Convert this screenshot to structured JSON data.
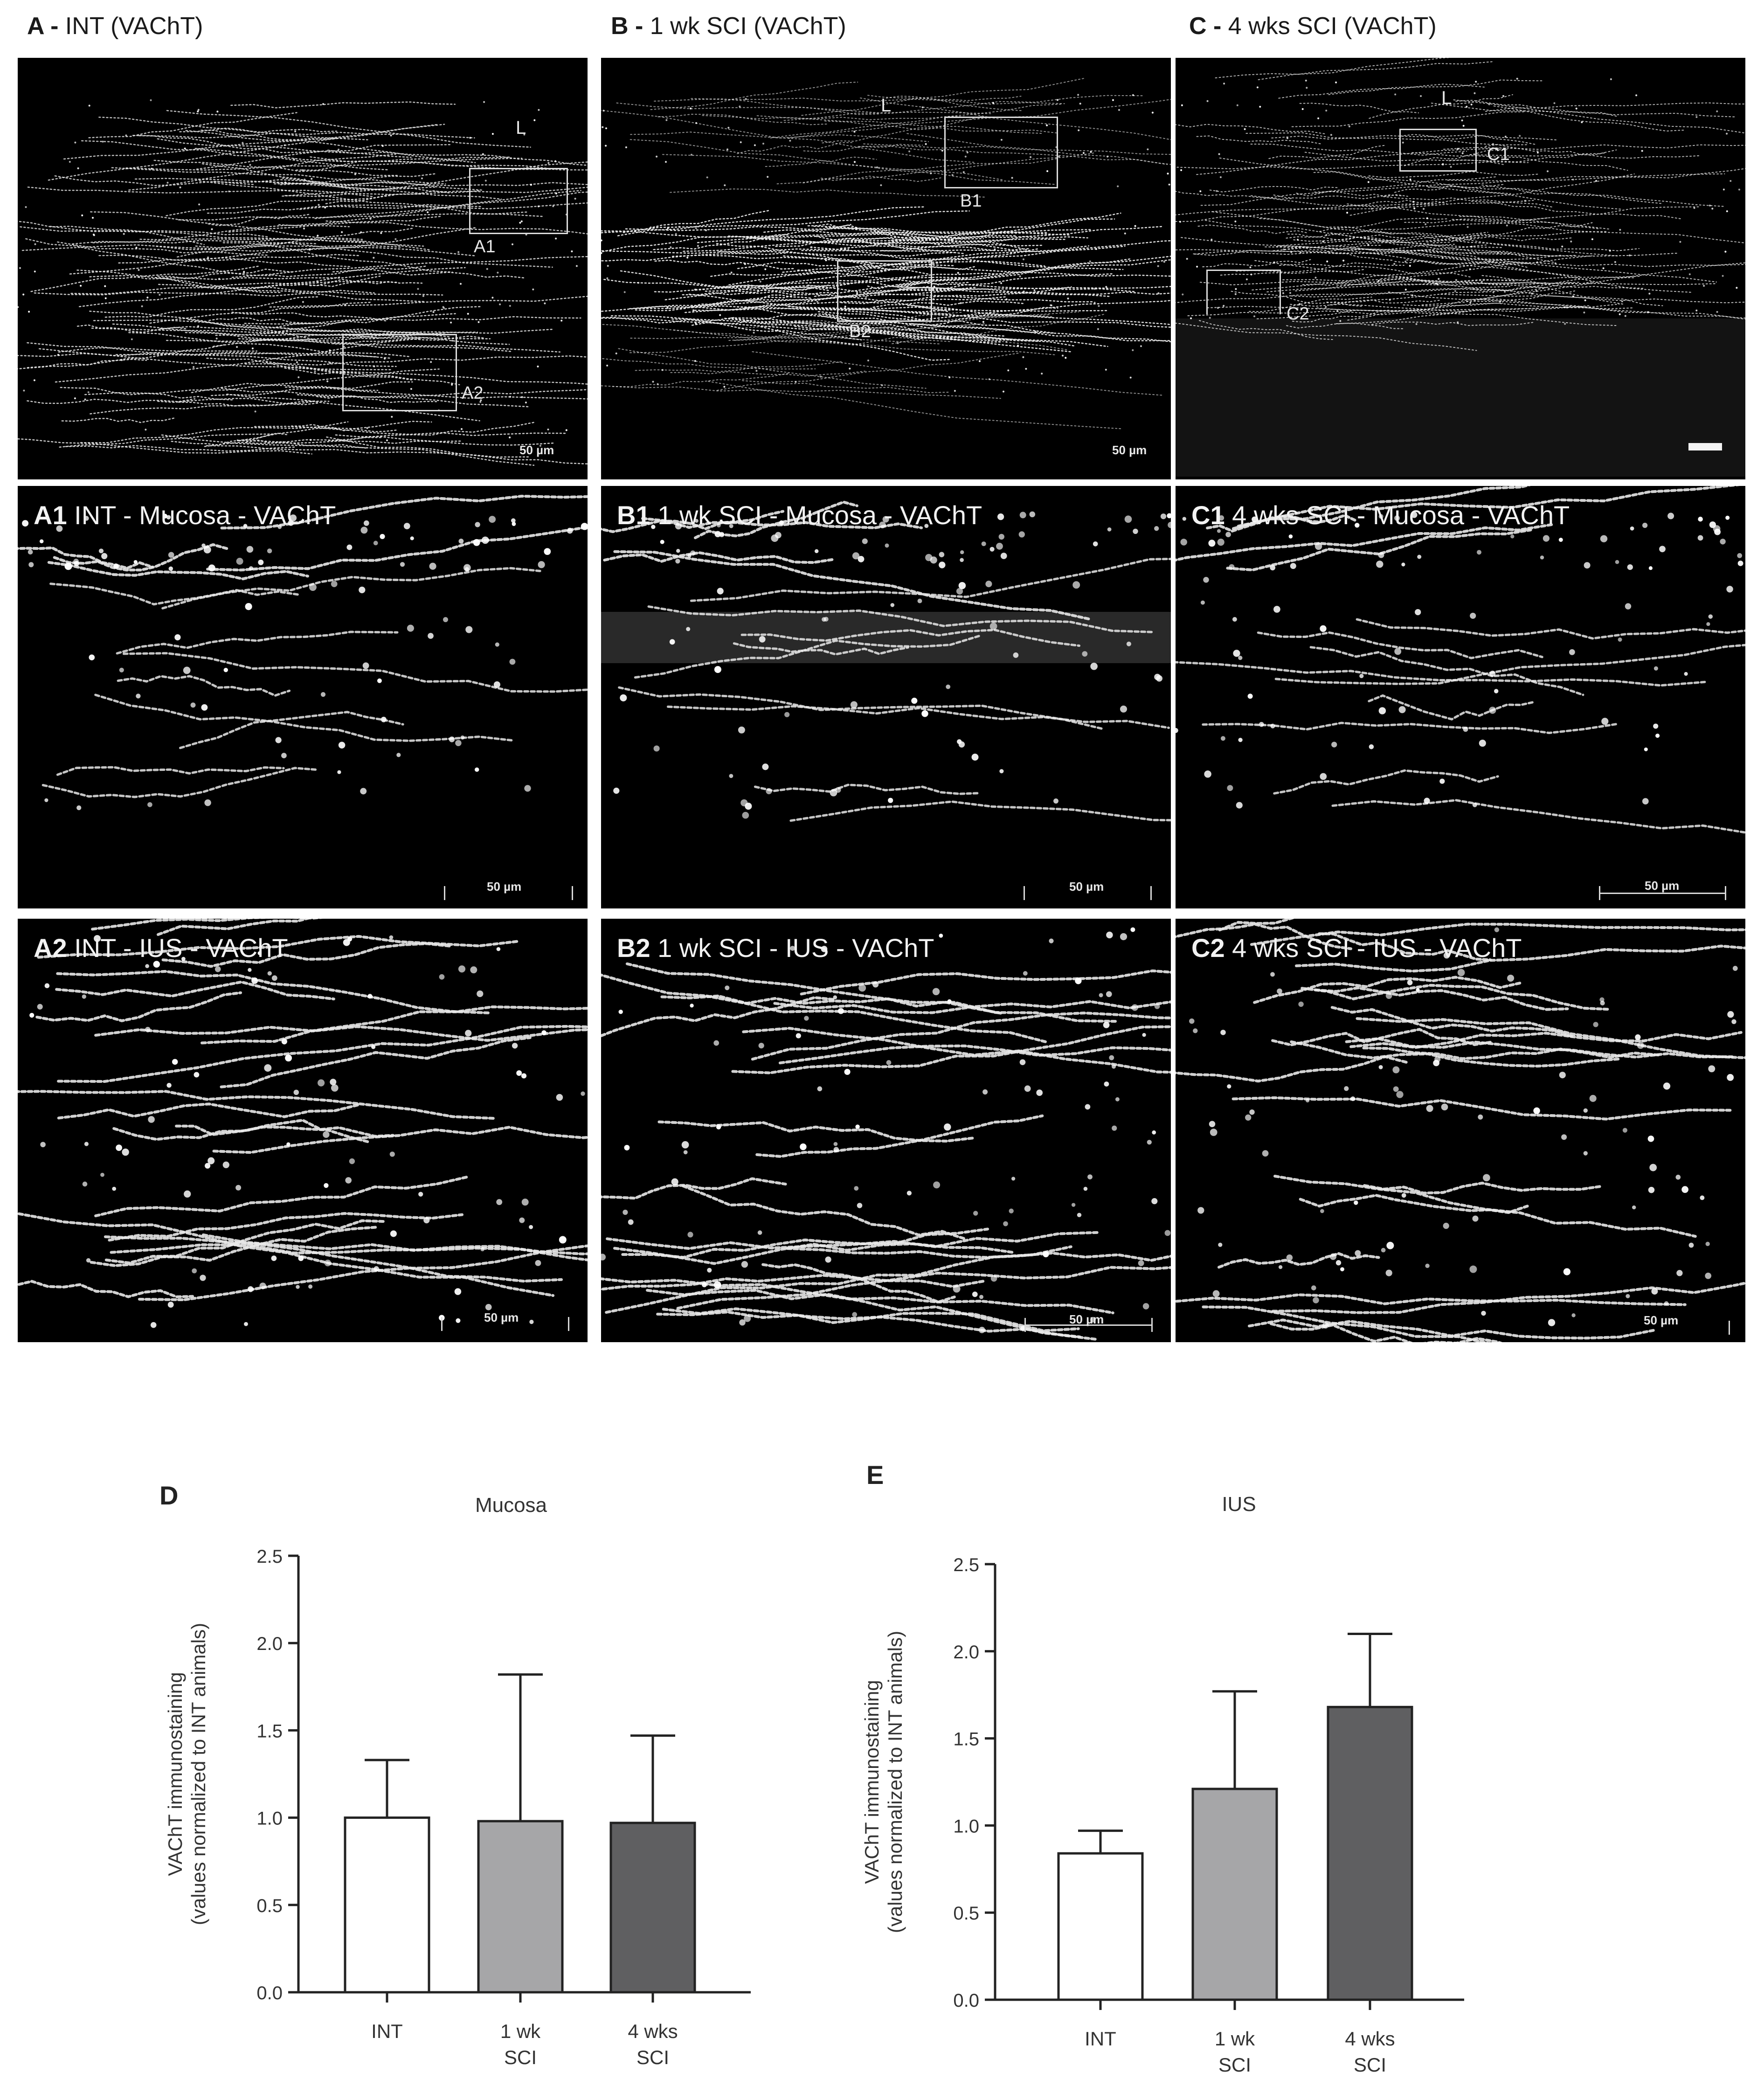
{
  "panels": {
    "A": {
      "letter": "A -",
      "title": "INT (VAChT)",
      "lumen": "L",
      "roi1": "A1",
      "roi2": "A2",
      "scale": "50 µm"
    },
    "B": {
      "letter": "B -",
      "title": "1 wk SCI (VAChT)",
      "lumen": "L",
      "roi1": "B1",
      "roi2": "B2",
      "scale": "50 µm"
    },
    "C": {
      "letter": "C -",
      "title": "4 wks SCI (VAChT)",
      "lumen": "L",
      "roi1": "C1",
      "roi2": "C2"
    },
    "A1": {
      "letter": "A1",
      "title": "INT - Mucosa - VAChT",
      "scale": "50 µm"
    },
    "B1": {
      "letter": "B1",
      "title": "1 wk SCI - Mucosa - VAChT",
      "scale": "50 µm"
    },
    "C1": {
      "letter": "C1",
      "title": "4 wks SCI - Mucosa - VAChT",
      "scale": "50 µm"
    },
    "A2": {
      "letter": "A2",
      "title": "INT - IUS - VAChT",
      "scale": "50 µm"
    },
    "B2": {
      "letter": "B2",
      "title": "1 wk SCI - IUS - VAChT",
      "scale": "50 µm"
    },
    "C2": {
      "letter": "C2",
      "title": "4 wks SCI - IUS - VAChT",
      "scale": "50 µm"
    }
  },
  "chart_data": [
    {
      "letter": "D",
      "type": "bar",
      "title": "Mucosa",
      "ylabel_line1": "VAChT immunostaining",
      "ylabel_line2": "(values normalized to INT animals)",
      "categories": [
        [
          "INT"
        ],
        [
          "1 wk",
          "SCI"
        ],
        [
          "4 wks",
          "SCI"
        ]
      ],
      "values": [
        1.0,
        0.98,
        0.97
      ],
      "errors": [
        0.33,
        0.84,
        0.5
      ],
      "bar_colors": [
        "#ffffff",
        "#a6a6a8",
        "#5f5f61"
      ],
      "ylim": [
        0,
        2.5
      ],
      "yticks": [
        "0.0",
        "0.5",
        "1.0",
        "1.5",
        "2.0",
        "2.5"
      ]
    },
    {
      "letter": "E",
      "type": "bar",
      "title": "IUS",
      "ylabel_line1": "VAChT immunostaining",
      "ylabel_line2": "(values normalized to INT animals)",
      "categories": [
        [
          "INT"
        ],
        [
          "1 wk",
          "SCI"
        ],
        [
          "4 wks",
          "SCI"
        ]
      ],
      "values": [
        0.84,
        1.21,
        1.68
      ],
      "errors": [
        0.13,
        0.56,
        0.42
      ],
      "bar_colors": [
        "#ffffff",
        "#a6a6a8",
        "#5f5f61"
      ],
      "ylim": [
        0,
        2.5
      ],
      "yticks": [
        "0.0",
        "0.5",
        "1.0",
        "1.5",
        "2.0",
        "2.5"
      ]
    }
  ]
}
